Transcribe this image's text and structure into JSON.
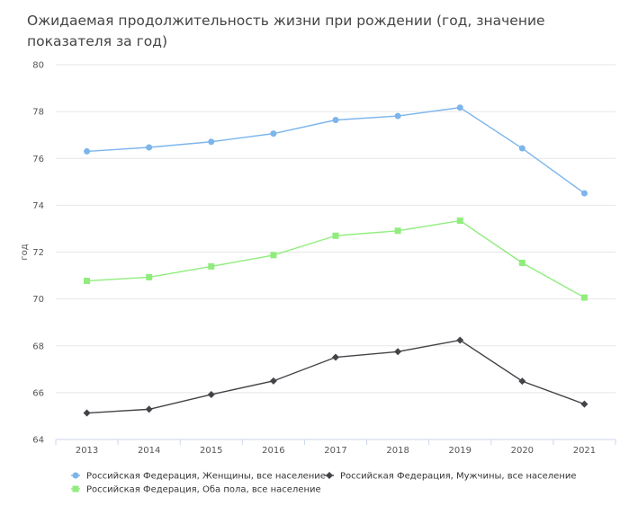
{
  "chart_data": {
    "type": "line",
    "title": "Ожидаемая продолжительность жизни при рождении (год, значение показателя за год)",
    "xlabel": "",
    "ylabel": "год",
    "ylim": [
      64,
      80
    ],
    "yticks": [
      64,
      66,
      68,
      70,
      72,
      74,
      76,
      78,
      80
    ],
    "categories": [
      "2013",
      "2014",
      "2015",
      "2016",
      "2017",
      "2018",
      "2019",
      "2020",
      "2021"
    ],
    "grid": true,
    "legend_position": "bottom",
    "series": [
      {
        "name": "Российская Федерация, Женщины, все население",
        "color": "#7cb5ec",
        "marker": "circle",
        "values": [
          76.3,
          76.47,
          76.71,
          77.06,
          77.64,
          77.81,
          78.17,
          76.43,
          74.51
        ]
      },
      {
        "name": "Российская Федерация, Мужчины, все население",
        "color": "#434348",
        "marker": "diamond",
        "values": [
          65.13,
          65.29,
          65.92,
          66.5,
          67.51,
          67.75,
          68.24,
          66.49,
          65.51
        ]
      },
      {
        "name": "Российская Федерация, Оба пола, все население",
        "color": "#90ed7d",
        "marker": "square",
        "values": [
          70.77,
          70.93,
          71.39,
          71.87,
          72.7,
          72.91,
          73.34,
          71.54,
          70.06
        ]
      }
    ]
  }
}
